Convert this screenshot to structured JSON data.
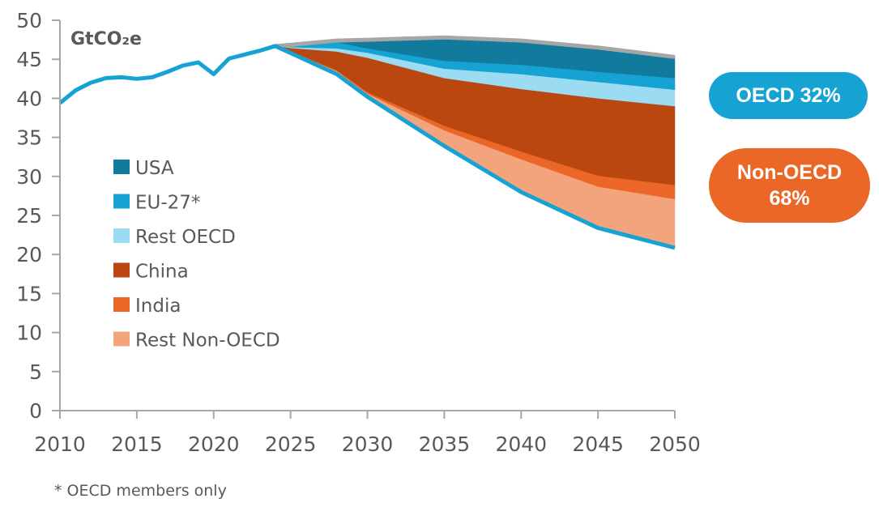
{
  "chart_data": {
    "type": "area",
    "unit_label": "GtCO₂e",
    "xlim": [
      2010,
      2050
    ],
    "ylim": [
      0,
      50
    ],
    "x_ticks": [
      "2010",
      "2015",
      "2020",
      "2025",
      "2030",
      "2035",
      "2040",
      "2045",
      "2050"
    ],
    "y_ticks": [
      "0",
      "5",
      "10",
      "15",
      "20",
      "25",
      "30",
      "35",
      "40",
      "45",
      "50"
    ],
    "grid": false,
    "legend_position": "left-middle",
    "history": {
      "x": [
        2010,
        2011,
        2012,
        2013,
        2014,
        2015,
        2016,
        2017,
        2018,
        2019,
        2020,
        2021,
        2022,
        2023,
        2024
      ],
      "y": [
        39.4,
        41.0,
        42.0,
        42.6,
        42.7,
        42.5,
        42.7,
        43.4,
        44.2,
        44.6,
        43.1,
        45.1,
        45.6,
        46.1,
        46.7
      ]
    },
    "projection": {
      "x": [
        2024,
        2025,
        2028,
        2030,
        2035,
        2040,
        2045,
        2050
      ],
      "pathway": [
        46.7,
        45.8,
        43.1,
        40.2,
        33.9,
        28.0,
        23.4,
        20.85
      ],
      "series": [
        {
          "name": "Rest Non-OECD",
          "color": "#f4a47c",
          "values": [
            0,
            0.2,
            0.4,
            0.4,
            2.0,
            4.2,
            5.3,
            6.25
          ]
        },
        {
          "name": "India",
          "color": "#ea6727",
          "values": [
            0,
            0.05,
            0.1,
            0.2,
            0.6,
            1.0,
            1.4,
            1.8
          ]
        },
        {
          "name": "China",
          "color": "#b9470f",
          "values": [
            0,
            0.4,
            2.4,
            4.4,
            6.1,
            8.0,
            9.9,
            10.1
          ]
        },
        {
          "name": "Rest OECD",
          "color": "#9bdcf3",
          "values": [
            0,
            0.1,
            0.4,
            0.65,
            1.2,
            1.9,
            2.1,
            2.1
          ]
        },
        {
          "name": "EU-27*",
          "color": "#16a3d4",
          "values": [
            0,
            0.2,
            0.8,
            0.55,
            1.0,
            1.2,
            1.3,
            1.5
          ]
        },
        {
          "name": "USA",
          "color": "#127a9c",
          "values": [
            0,
            0.1,
            0.2,
            1.1,
            3.0,
            3.1,
            3.1,
            2.7
          ]
        }
      ]
    },
    "legend": [
      "USA",
      "EU-27*",
      "Rest OECD",
      "China",
      "India",
      "Rest Non-OECD"
    ],
    "legend_colors": [
      "#127a9c",
      "#16a3d4",
      "#9bdcf3",
      "#b9470f",
      "#ea6727",
      "#f4a47c"
    ],
    "line_color": "#16a3d4",
    "upper_line_color": "#a6a6a6",
    "annotations": {
      "oecd": {
        "label": "OECD 32%",
        "color": "#16a3d4"
      },
      "non_oecd": {
        "line1": "Non-OECD",
        "line2": "68%",
        "color": "#ea6727"
      }
    },
    "footnote": "* OECD members only"
  }
}
